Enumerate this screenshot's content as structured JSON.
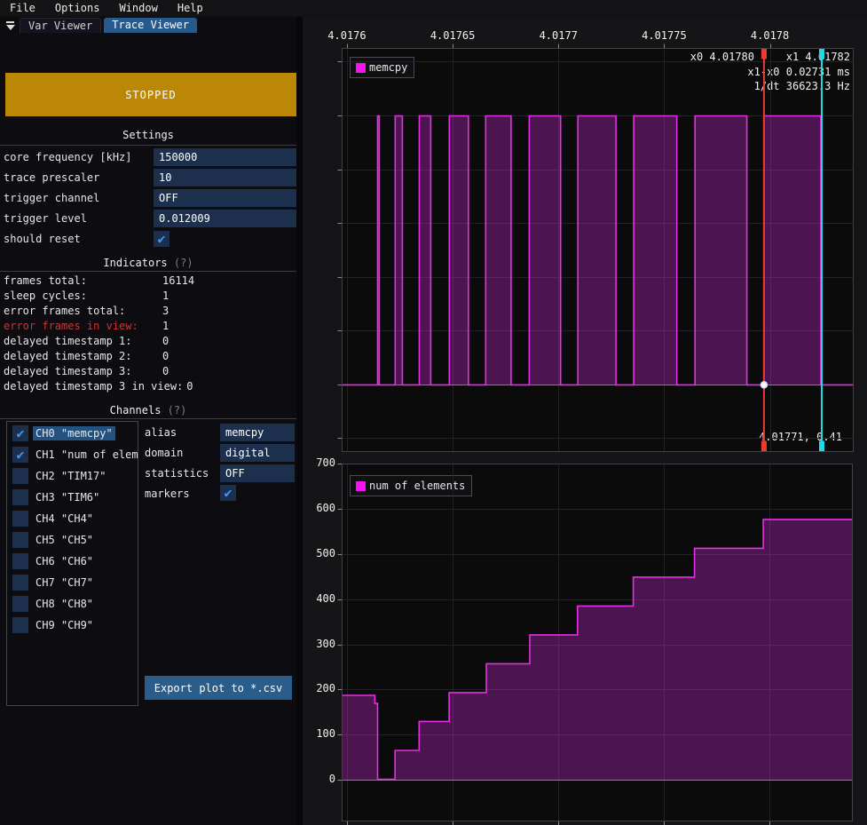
{
  "menu": {
    "items": [
      "File",
      "Options",
      "Window",
      "Help"
    ]
  },
  "tabs": {
    "var_viewer": "Var Viewer",
    "trace_viewer": "Trace Viewer"
  },
  "run_button": {
    "label": "STOPPED",
    "color": "#bd8706"
  },
  "settings": {
    "header": "Settings",
    "rows": [
      {
        "label": "core frequency [kHz]",
        "value": "150000"
      },
      {
        "label": "trace prescaler",
        "value": "10"
      },
      {
        "label": "trigger channel",
        "value": "OFF"
      },
      {
        "label": "trigger level",
        "value": "0.012009"
      }
    ],
    "should_reset_label": "should reset",
    "should_reset_checked": true
  },
  "indicators": {
    "header": "Indicators",
    "help": "(?)",
    "rows": [
      {
        "label": "frames total:",
        "value": "16114",
        "error": false
      },
      {
        "label": "sleep cycles:",
        "value": "1",
        "error": false
      },
      {
        "label": "error frames total:",
        "value": "3",
        "error": false
      },
      {
        "label": "error frames in view:",
        "value": "1",
        "error": true
      },
      {
        "label": "delayed timestamp 1:",
        "value": "0",
        "error": false
      },
      {
        "label": "delayed timestamp 2:",
        "value": "0",
        "error": false
      },
      {
        "label": "delayed timestamp 3:",
        "value": "0",
        "error": false
      },
      {
        "label": "delayed timestamp 3 in view:",
        "value": "0",
        "error": false
      }
    ]
  },
  "channels": {
    "header": "Channels",
    "help": "(?)",
    "list": [
      {
        "name": "CH0 \"memcpy\"",
        "checked": true,
        "selected": true
      },
      {
        "name": "CH1 \"num of elements\"",
        "checked": true,
        "selected": false
      },
      {
        "name": "CH2 \"TIM17\"",
        "checked": false,
        "selected": false
      },
      {
        "name": "CH3 \"TIM6\"",
        "checked": false,
        "selected": false
      },
      {
        "name": "CH4 \"CH4\"",
        "checked": false,
        "selected": false
      },
      {
        "name": "CH5 \"CH5\"",
        "checked": false,
        "selected": false
      },
      {
        "name": "CH6 \"CH6\"",
        "checked": false,
        "selected": false
      },
      {
        "name": "CH7 \"CH7\"",
        "checked": false,
        "selected": false
      },
      {
        "name": "CH8 \"CH8\"",
        "checked": false,
        "selected": false
      },
      {
        "name": "CH9 \"CH9\"",
        "checked": false,
        "selected": false
      }
    ],
    "props": [
      {
        "label": "alias",
        "value": "memcpy"
      },
      {
        "label": "domain",
        "value": "digital"
      },
      {
        "label": "statistics",
        "value": "OFF"
      }
    ],
    "markers_label": "markers",
    "markers_checked": true
  },
  "export_button": {
    "label": "Export plot to *.csv"
  },
  "colors": {
    "accent": "#e62ee6",
    "legend_swatch": "#f414f4",
    "series_fill": "rgba(230,46,235,0.30)",
    "marker_x0": "#ed3b32",
    "marker_x1": "#1fdbe5",
    "plot_border": "#414147",
    "grid_faint": "#222226",
    "zero_line": "#85858a",
    "dot_fill": "#ffffff",
    "dot_ring": "#cfe3ff"
  },
  "chart_data": [
    {
      "type": "digital-step",
      "legend": "memcpy",
      "x_range": [
        4.0175975,
        4.0178392
      ],
      "y_range": [
        -0.248,
        1.251
      ],
      "x_ticks": [
        {
          "v": 4.0176,
          "label": "4.0176"
        },
        {
          "v": 4.01765,
          "label": "4.01765"
        },
        {
          "v": 4.0177,
          "label": "4.0177"
        },
        {
          "v": 4.01775,
          "label": "4.01775"
        },
        {
          "v": 4.0178,
          "label": "4.0178"
        }
      ],
      "x_tick_labels_visible": true,
      "y_gridlines": [
        -0.2,
        0,
        0.2,
        0.4,
        0.6,
        0.8,
        1.0,
        1.2
      ],
      "steps": [
        [
          4.0175975,
          0
        ],
        [
          4.0176143,
          1
        ],
        [
          4.0176151,
          0
        ],
        [
          4.0176226,
          1
        ],
        [
          4.017626,
          0
        ],
        [
          4.017634,
          1
        ],
        [
          4.0176394,
          0
        ],
        [
          4.0176482,
          1
        ],
        [
          4.0176572,
          0
        ],
        [
          4.0176654,
          1
        ],
        [
          4.0176774,
          0
        ],
        [
          4.017686,
          1
        ],
        [
          4.0177008,
          0
        ],
        [
          4.017709,
          1
        ],
        [
          4.017727,
          0
        ],
        [
          4.0177354,
          1
        ],
        [
          4.0177558,
          0
        ],
        [
          4.0177644,
          1
        ],
        [
          4.0177889,
          0
        ],
        [
          4.0177969,
          1
        ],
        [
          4.0178239,
          0
        ],
        [
          4.0178392,
          0
        ]
      ],
      "markers": {
        "x0_value": 4.017797,
        "x1_value": 4.0178243,
        "x0_label": "x0 4.01780",
        "x1_label": "x1 4.01782",
        "dx_label": "x1-x0 0.02731 ms",
        "freq_label": "1/dt 36623.3 Hz",
        "readout": "4.01771, 0.41"
      }
    },
    {
      "type": "step-area",
      "legend": "num of elements",
      "x_range": [
        4.0175975,
        4.0178392
      ],
      "y_range": [
        -90.6,
        700.8
      ],
      "x_ticks": [
        {
          "v": 4.0176,
          "label": ""
        },
        {
          "v": 4.01765,
          "label": ""
        },
        {
          "v": 4.0177,
          "label": ""
        },
        {
          "v": 4.01775,
          "label": ""
        },
        {
          "v": 4.0178,
          "label": ""
        }
      ],
      "x_tick_labels_visible": false,
      "y_ticks": [
        {
          "v": 700,
          "label": "700"
        },
        {
          "v": 600,
          "label": "600"
        },
        {
          "v": 500,
          "label": "500"
        },
        {
          "v": 400,
          "label": "400"
        },
        {
          "v": 300,
          "label": "300"
        },
        {
          "v": 200,
          "label": "200"
        },
        {
          "v": 100,
          "label": "100"
        },
        {
          "v": 0,
          "label": "0"
        }
      ],
      "steps": [
        [
          4.0175975,
          188
        ],
        [
          4.017613,
          170
        ],
        [
          4.0176143,
          2
        ],
        [
          4.0176226,
          66
        ],
        [
          4.017634,
          130
        ],
        [
          4.0176482,
          194
        ],
        [
          4.0176658,
          258
        ],
        [
          4.0176864,
          322
        ],
        [
          4.017709,
          386
        ],
        [
          4.0177354,
          450
        ],
        [
          4.0177644,
          514
        ],
        [
          4.017797,
          578
        ],
        [
          4.0178392,
          578
        ]
      ]
    }
  ]
}
